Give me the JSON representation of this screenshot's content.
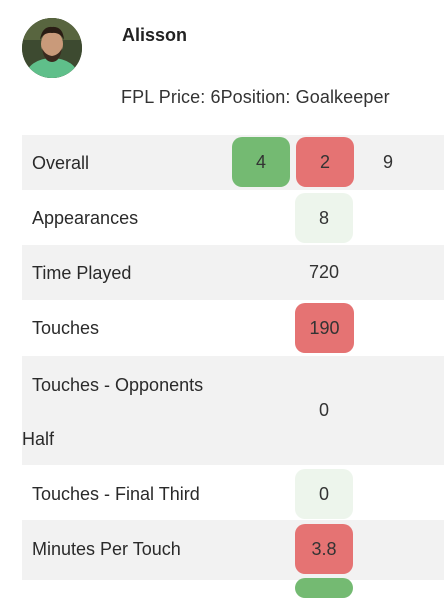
{
  "player": {
    "name": "Alisson",
    "price_label": "FPL Price: 6",
    "position_label": "Position: Goalkeeper"
  },
  "rows": [
    {
      "label": "Overall",
      "cells": [
        {
          "value": "4",
          "color": "#74ba72"
        },
        {
          "value": "2",
          "color": "#e57373"
        },
        {
          "value": "9",
          "color": "transparent"
        }
      ]
    },
    {
      "label": "Appearances",
      "cells": [
        {
          "value": "8",
          "color": "#edf5ec"
        }
      ]
    },
    {
      "label": "Time Played",
      "cells": [
        {
          "value": "720",
          "color": "transparent"
        }
      ]
    },
    {
      "label": "Touches",
      "cells": [
        {
          "value": "190",
          "color": "#e57373"
        }
      ]
    },
    {
      "label_line1": "Touches - Opponents",
      "label_line2": "Half",
      "cells": [
        {
          "value": "0",
          "color": "transparent"
        }
      ]
    },
    {
      "label": "Touches - Final Third",
      "cells": [
        {
          "value": "0",
          "color": "#edf5ec"
        }
      ]
    },
    {
      "label": "Minutes Per Touch",
      "cells": [
        {
          "value": "3.8",
          "color": "#e57373"
        }
      ]
    }
  ]
}
